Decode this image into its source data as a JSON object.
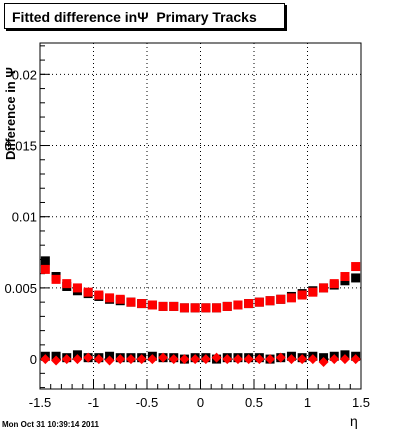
{
  "chart_data": {
    "type": "scatter",
    "title": "Fitted difference inΨ  Primary Tracks",
    "xlabel": "η",
    "ylabel": "Difference in Ψ",
    "xlim": [
      -1.5,
      1.5
    ],
    "ylim": [
      -0.0021,
      0.0222
    ],
    "x_ticks": [
      "-1.5",
      "-1",
      "-0.5",
      "0",
      "0.5",
      "1",
      "1.5"
    ],
    "y_ticks": [
      "0",
      "0.005",
      "0.01",
      "0.015",
      "0.02"
    ],
    "grid": true,
    "legend": "none",
    "series": [
      {
        "color": "#000000",
        "marker": "square",
        "x": [
          -1.45,
          -1.35,
          -1.25,
          -1.15,
          -1.05,
          -0.95,
          -0.85,
          -0.75,
          -0.65,
          -0.55,
          -0.45,
          -0.35,
          -0.25,
          -0.15,
          -0.05,
          0.05,
          0.15,
          0.25,
          0.35,
          0.45,
          0.55,
          0.65,
          0.75,
          0.85,
          0.95,
          1.05,
          1.15,
          1.25,
          1.35,
          1.45
        ],
        "y": [
          0.0069,
          0.0058,
          0.0051,
          0.0048,
          0.0046,
          0.0044,
          0.0042,
          0.0041,
          0.004,
          0.0039,
          0.0038,
          0.0037,
          0.0037,
          0.0036,
          0.0036,
          0.0036,
          0.0036,
          0.0037,
          0.0038,
          0.0039,
          0.004,
          0.0041,
          0.0042,
          0.0044,
          0.0046,
          0.0048,
          0.005,
          0.0052,
          0.0055,
          0.0057
        ]
      },
      {
        "color": "#ff0000",
        "marker": "square",
        "x": [
          -1.45,
          -1.35,
          -1.25,
          -1.15,
          -1.05,
          -0.95,
          -0.85,
          -0.75,
          -0.65,
          -0.55,
          -0.45,
          -0.35,
          -0.25,
          -0.15,
          -0.05,
          0.05,
          0.15,
          0.25,
          0.35,
          0.45,
          0.55,
          0.65,
          0.75,
          0.85,
          0.95,
          1.05,
          1.15,
          1.25,
          1.35,
          1.45
        ],
        "y": [
          0.0063,
          0.0056,
          0.0053,
          0.005,
          0.0047,
          0.0045,
          0.0043,
          0.0042,
          0.004,
          0.0039,
          0.0038,
          0.0037,
          0.0037,
          0.0036,
          0.0036,
          0.0036,
          0.0036,
          0.0037,
          0.0038,
          0.0039,
          0.004,
          0.0041,
          0.0042,
          0.0043,
          0.0045,
          0.0047,
          0.005,
          0.0053,
          0.0058,
          0.0065
        ]
      },
      {
        "color": "#000000",
        "marker": "square",
        "x": [
          -1.45,
          -1.35,
          -1.25,
          -1.15,
          -1.05,
          -0.95,
          -0.85,
          -0.75,
          -0.65,
          -0.55,
          -0.45,
          -0.35,
          -0.25,
          -0.15,
          -0.05,
          0.05,
          0.15,
          0.25,
          0.35,
          0.45,
          0.55,
          0.65,
          0.75,
          0.85,
          0.95,
          1.05,
          1.15,
          1.25,
          1.35,
          1.45
        ],
        "y": [
          0.0002,
          0.0002,
          0.0001,
          0.0003,
          0.0001,
          0.0001,
          0.0002,
          0.0001,
          0.0001,
          0.0001,
          0.0002,
          0.0001,
          0.0001,
          0.0,
          0.0001,
          0.0001,
          0.0,
          0.0001,
          0.0001,
          0.0001,
          0.0001,
          0.0,
          0.0001,
          0.0002,
          0.0001,
          0.0002,
          0.0001,
          0.0002,
          0.0003,
          0.0002
        ]
      },
      {
        "color": "#ff0000",
        "marker": "diamond",
        "x": [
          -1.45,
          -1.35,
          -1.25,
          -1.15,
          -1.05,
          -0.95,
          -0.85,
          -0.75,
          -0.65,
          -0.55,
          -0.45,
          -0.35,
          -0.25,
          -0.15,
          -0.05,
          0.05,
          0.15,
          0.25,
          0.35,
          0.45,
          0.55,
          0.65,
          0.75,
          0.85,
          0.95,
          1.05,
          1.15,
          1.25,
          1.35,
          1.45
        ],
        "y": [
          0.0,
          -0.0001,
          0.0,
          0.0,
          0.0001,
          0.0,
          -0.0001,
          0.0,
          0.0,
          0.0,
          0.0,
          0.0001,
          0.0,
          0.0,
          0.0,
          0.0,
          0.0001,
          0.0,
          0.0,
          0.0,
          0.0,
          0.0,
          0.0001,
          0.0,
          0.0,
          0.0,
          -0.0002,
          0.0,
          0.0,
          0.0
        ]
      }
    ]
  },
  "footer": {
    "timestamp": "Mon Oct 31 10:39:14 2011"
  }
}
